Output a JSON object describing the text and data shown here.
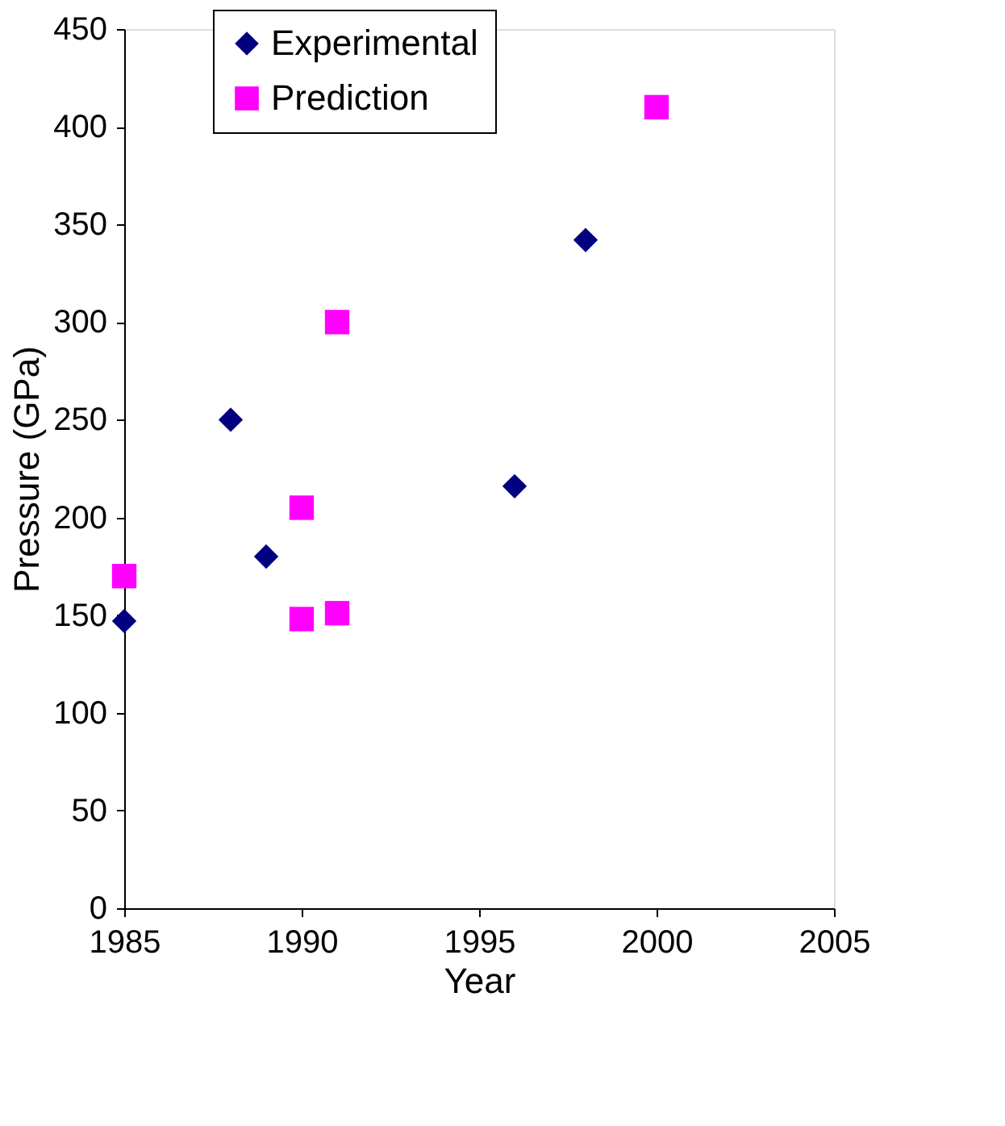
{
  "chart_data": {
    "type": "scatter",
    "xlabel": "Year",
    "ylabel": "Pressure (GPa)",
    "xlim": [
      1985,
      2005
    ],
    "xticks": [
      1985,
      1990,
      1995,
      2000,
      2005
    ],
    "ylim": [
      0,
      450
    ],
    "yticks": [
      0,
      50,
      100,
      150,
      200,
      250,
      300,
      350,
      400,
      450
    ],
    "grid": false,
    "legend": "top left",
    "series": [
      {
        "name": "Experimental",
        "color": "#000080",
        "marker": "diamond",
        "x": [
          1985,
          1988,
          1989,
          1996,
          1998
        ],
        "values": [
          147,
          250,
          180,
          216,
          342
        ]
      },
      {
        "name": "Prediction",
        "color": "#ff00ff",
        "marker": "square",
        "x": [
          1985,
          1990,
          1990,
          1991,
          1991,
          2000
        ],
        "values": [
          170,
          205,
          148,
          300,
          151,
          410
        ]
      }
    ]
  }
}
